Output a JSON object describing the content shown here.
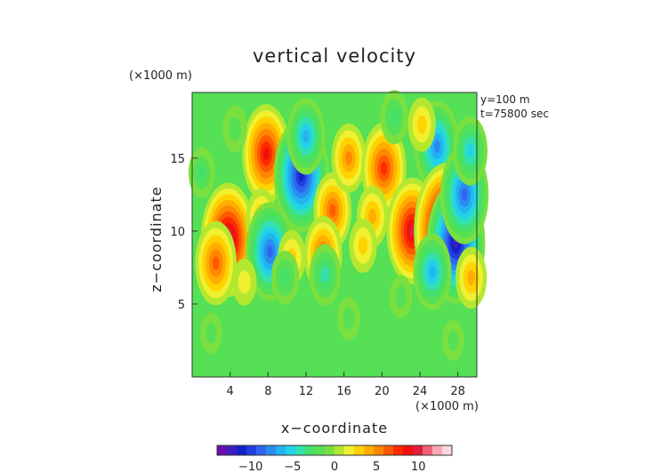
{
  "chart_data": {
    "type": "heatmap",
    "title": "vertical velocity",
    "xlabel": "x−coordinate",
    "ylabel": "z−coordinate",
    "x_units": "(×1000 m)",
    "y_units": "(×1000 m)",
    "annotations": [
      "y=100 m",
      "t=75800 sec"
    ],
    "xlim": [
      0,
      30
    ],
    "ylim": [
      0,
      19.5
    ],
    "x_ticks": [
      4,
      8,
      12,
      16,
      20,
      24,
      28
    ],
    "x_tick_labels": [
      "4",
      "8",
      "12",
      "16",
      "20",
      "24",
      "28"
    ],
    "y_ticks": [
      5,
      10,
      15
    ],
    "y_tick_labels": [
      "5",
      "10",
      "15"
    ],
    "colorbar": {
      "range": [
        -14,
        14
      ],
      "ticks": [
        -10,
        -5,
        0,
        5,
        10
      ],
      "tick_labels": [
        "−10",
        "−5",
        "0",
        "5",
        "10"
      ],
      "colors": [
        "#6a0dad",
        "#3a1fbf",
        "#1420c8",
        "#1f3fe0",
        "#2f66f0",
        "#2a8cf0",
        "#22b4f0",
        "#22d2e8",
        "#33e0b0",
        "#44e06a",
        "#55e055",
        "#7ae040",
        "#b4e830",
        "#f0f030",
        "#ffd200",
        "#ffae00",
        "#ff8800",
        "#ff5a00",
        "#ff2a00",
        "#f01010",
        "#e01e3c",
        "#f06078",
        "#f8a8b4",
        "#fcd8de"
      ]
    },
    "features": [
      {
        "x": 3.8,
        "y": 9.4,
        "value": 11
      },
      {
        "x": 2.5,
        "y": 7.8,
        "value": 7
      },
      {
        "x": 7.8,
        "y": 15.3,
        "value": 9
      },
      {
        "x": 7.3,
        "y": 10.8,
        "value": 4
      },
      {
        "x": 11.5,
        "y": 13.8,
        "value": -11
      },
      {
        "x": 12.0,
        "y": 16.5,
        "value": -6
      },
      {
        "x": 8.2,
        "y": 8.6,
        "value": -9
      },
      {
        "x": 10.5,
        "y": 8.2,
        "value": 3
      },
      {
        "x": 14.8,
        "y": 11.4,
        "value": 6
      },
      {
        "x": 13.8,
        "y": 8.4,
        "value": 6
      },
      {
        "x": 16.5,
        "y": 15.0,
        "value": 5
      },
      {
        "x": 20.2,
        "y": 14.3,
        "value": 8
      },
      {
        "x": 19.0,
        "y": 11.0,
        "value": 4
      },
      {
        "x": 18.0,
        "y": 9.0,
        "value": 3
      },
      {
        "x": 23.2,
        "y": 10.0,
        "value": 10
      },
      {
        "x": 25.8,
        "y": 15.8,
        "value": -8
      },
      {
        "x": 26.8,
        "y": 10.0,
        "value": 14
      },
      {
        "x": 27.8,
        "y": 9.2,
        "value": -12
      },
      {
        "x": 28.7,
        "y": 12.5,
        "value": -9
      },
      {
        "x": 29.3,
        "y": 15.5,
        "value": -5
      },
      {
        "x": 25.3,
        "y": 7.2,
        "value": -6
      },
      {
        "x": 29.4,
        "y": 6.8,
        "value": 4
      },
      {
        "x": 24.2,
        "y": 17.3,
        "value": 3
      },
      {
        "x": 21.3,
        "y": 17.8,
        "value": -3
      },
      {
        "x": 4.5,
        "y": 17.0,
        "value": -2
      },
      {
        "x": 1.0,
        "y": 14.0,
        "value": -2.5
      },
      {
        "x": 9.8,
        "y": 6.8,
        "value": -3
      },
      {
        "x": 22.0,
        "y": 5.5,
        "value": -1.5
      },
      {
        "x": 5.5,
        "y": 6.5,
        "value": 2
      },
      {
        "x": 16.5,
        "y": 4.0,
        "value": -1.5
      },
      {
        "x": 14.0,
        "y": 7.0,
        "value": -4
      },
      {
        "x": 2.0,
        "y": 3.0,
        "value": -1.2
      },
      {
        "x": 27.5,
        "y": 2.5,
        "value": -1.2
      }
    ]
  }
}
